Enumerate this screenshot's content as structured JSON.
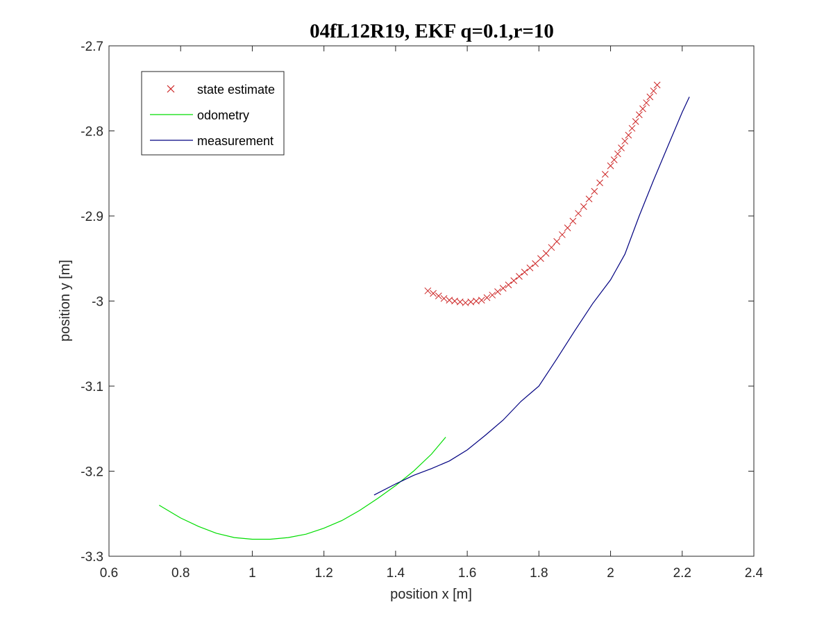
{
  "chart_data": {
    "type": "line",
    "title": "04fL12R19, EKF q=0.1,r=10",
    "xlabel": "position x [m]",
    "ylabel": "position y [m]",
    "xlim": [
      0.6,
      2.4
    ],
    "ylim": [
      -3.3,
      -2.7
    ],
    "x_ticks": [
      0.6,
      0.8,
      1.0,
      1.2,
      1.4,
      1.6,
      1.8,
      2.0,
      2.2,
      2.4
    ],
    "x_tick_labels": [
      "0.6",
      "0.8",
      "1",
      "1.2",
      "1.4",
      "1.6",
      "1.8",
      "2",
      "2.2",
      "2.4"
    ],
    "y_ticks": [
      -2.7,
      -2.8,
      -2.9,
      -3.0,
      -3.1,
      -3.2,
      -3.3
    ],
    "y_tick_labels": [
      "-2.7",
      "-2.8",
      "-2.9",
      "-3",
      "-3.1",
      "-3.2",
      "-3.3"
    ],
    "grid": false,
    "legend_position": "top-left",
    "series": [
      {
        "name": "state estimate",
        "style": "markers",
        "marker": "x",
        "color": "#cc2222",
        "x": [
          1.49,
          1.505,
          1.52,
          1.535,
          1.55,
          1.565,
          1.58,
          1.595,
          1.61,
          1.625,
          1.64,
          1.655,
          1.67,
          1.685,
          1.7,
          1.715,
          1.73,
          1.745,
          1.76,
          1.775,
          1.79,
          1.805,
          1.82,
          1.835,
          1.85,
          1.865,
          1.88,
          1.895,
          1.91,
          1.925,
          1.94,
          1.955,
          1.97,
          1.985,
          2.0,
          2.01,
          2.02,
          2.03,
          2.04,
          2.05,
          2.06,
          2.07,
          2.08,
          2.09,
          2.1,
          2.11,
          2.12,
          2.13
        ],
        "y": [
          -2.988,
          -2.991,
          -2.994,
          -2.997,
          -2.999,
          -3.0,
          -3.001,
          -3.002,
          -3.001,
          -3.0,
          -2.999,
          -2.996,
          -2.993,
          -2.989,
          -2.985,
          -2.981,
          -2.976,
          -2.971,
          -2.966,
          -2.961,
          -2.956,
          -2.95,
          -2.944,
          -2.937,
          -2.93,
          -2.922,
          -2.914,
          -2.906,
          -2.897,
          -2.889,
          -2.88,
          -2.871,
          -2.861,
          -2.851,
          -2.841,
          -2.834,
          -2.827,
          -2.82,
          -2.812,
          -2.805,
          -2.797,
          -2.789,
          -2.781,
          -2.774,
          -2.767,
          -2.76,
          -2.753,
          -2.746
        ]
      },
      {
        "name": "odometry",
        "style": "line",
        "color": "#00dd00",
        "x": [
          0.74,
          0.8,
          0.85,
          0.9,
          0.95,
          1.0,
          1.05,
          1.1,
          1.15,
          1.2,
          1.25,
          1.3,
          1.35,
          1.4,
          1.45,
          1.5,
          1.54
        ],
        "y": [
          -3.24,
          -3.255,
          -3.265,
          -3.273,
          -3.278,
          -3.28,
          -3.28,
          -3.278,
          -3.274,
          -3.267,
          -3.258,
          -3.246,
          -3.232,
          -3.217,
          -3.2,
          -3.18,
          -3.16
        ]
      },
      {
        "name": "measurement",
        "style": "line",
        "color": "#000080",
        "x": [
          1.34,
          1.4,
          1.45,
          1.5,
          1.55,
          1.6,
          1.65,
          1.7,
          1.75,
          1.8,
          1.85,
          1.9,
          1.95,
          2.0,
          2.04,
          2.08,
          2.12,
          2.16,
          2.2,
          2.22
        ],
        "y": [
          -3.228,
          -3.215,
          -3.205,
          -3.197,
          -3.188,
          -3.175,
          -3.158,
          -3.14,
          -3.118,
          -3.1,
          -3.068,
          -3.035,
          -3.003,
          -2.975,
          -2.945,
          -2.9,
          -2.858,
          -2.818,
          -2.778,
          -2.76
        ]
      }
    ]
  }
}
